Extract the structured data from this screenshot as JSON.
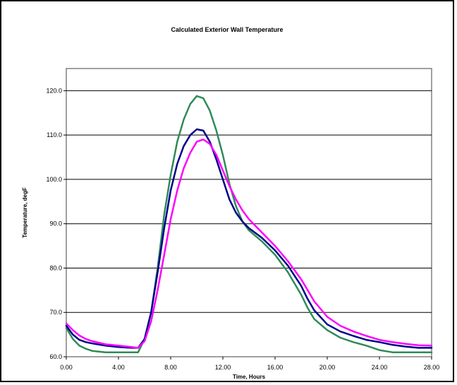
{
  "chart_data": {
    "type": "line",
    "title": "Calculated Exterior Wall Temperature",
    "xlabel": "Time, Hours",
    "ylabel": "Temperature, degF",
    "xlim": [
      0,
      28
    ],
    "ylim": [
      60,
      125
    ],
    "x_ticks": [
      "0.00",
      "4.00",
      "8.00",
      "12.00",
      "16.00",
      "20.00",
      "24.00",
      "28.00"
    ],
    "y_ticks": [
      "60.0",
      "70.0",
      "80.0",
      "90.0",
      "100.0",
      "110.0",
      "120.0"
    ],
    "grid": "horizontal",
    "legend": "none",
    "series": [
      {
        "color": "#2e8b57",
        "x": [
          0,
          0.5,
          1,
          1.5,
          2,
          3,
          4,
          5,
          5.5,
          6,
          6.5,
          7,
          7.5,
          8,
          8.5,
          9,
          9.5,
          10,
          10.5,
          11,
          11.5,
          12,
          12.5,
          13,
          13.5,
          14,
          15,
          16,
          17,
          18,
          18.5,
          19,
          20,
          21,
          22,
          23,
          24,
          25,
          26,
          27,
          28
        ],
        "y": [
          66.5,
          64,
          62.5,
          61.8,
          61.3,
          61,
          61,
          61,
          61,
          64,
          70,
          80,
          92,
          101,
          108.5,
          113.5,
          117,
          118.8,
          118.3,
          115.5,
          111,
          105.5,
          99,
          94,
          90.5,
          88.5,
          86,
          83,
          79,
          74,
          71,
          68.5,
          66,
          64.3,
          63.3,
          62.5,
          61.5,
          61,
          61,
          61,
          61
        ]
      },
      {
        "color": "#00008b",
        "x": [
          0,
          0.5,
          1,
          1.5,
          2,
          3,
          4,
          5,
          5.5,
          6,
          6.5,
          7,
          7.5,
          8,
          8.5,
          9,
          9.5,
          10,
          10.5,
          11,
          11.5,
          12,
          12.5,
          13,
          13.5,
          14,
          15,
          16,
          17,
          18,
          18.5,
          19,
          20,
          21,
          22,
          23,
          24,
          25,
          26,
          27,
          28
        ],
        "y": [
          67,
          65,
          63.8,
          63.3,
          63,
          62.5,
          62.2,
          62,
          62,
          64,
          70,
          79,
          89,
          97.5,
          103.5,
          107.5,
          110,
          111.3,
          111,
          108.5,
          104.5,
          100,
          95.5,
          92.5,
          90.5,
          89,
          86.8,
          84,
          80.5,
          76,
          73,
          70.5,
          67.3,
          65.7,
          64.7,
          63.8,
          63.3,
          62.7,
          62.3,
          62,
          62
        ]
      },
      {
        "color": "#ff00ff",
        "x": [
          0,
          0.5,
          1,
          1.5,
          2,
          3,
          4,
          5,
          5.5,
          6,
          6.5,
          7,
          7.5,
          8,
          8.5,
          9,
          9.5,
          10,
          10.5,
          11,
          11.5,
          12,
          12.5,
          13,
          13.5,
          14,
          15,
          16,
          17,
          18,
          18.5,
          19,
          20,
          21,
          22,
          23,
          24,
          25,
          26,
          27,
          28
        ],
        "y": [
          67.5,
          66,
          64.8,
          64,
          63.5,
          62.8,
          62.5,
          62.2,
          62,
          63.5,
          68,
          75,
          83,
          91,
          97.5,
          102.5,
          106,
          108.5,
          109,
          108,
          105.5,
          102,
          98.5,
          95.5,
          93,
          91,
          88,
          85,
          81.5,
          77.5,
          75,
          72.5,
          69,
          67,
          65.7,
          64.7,
          63.8,
          63.3,
          62.9,
          62.6,
          62.5
        ]
      }
    ]
  }
}
